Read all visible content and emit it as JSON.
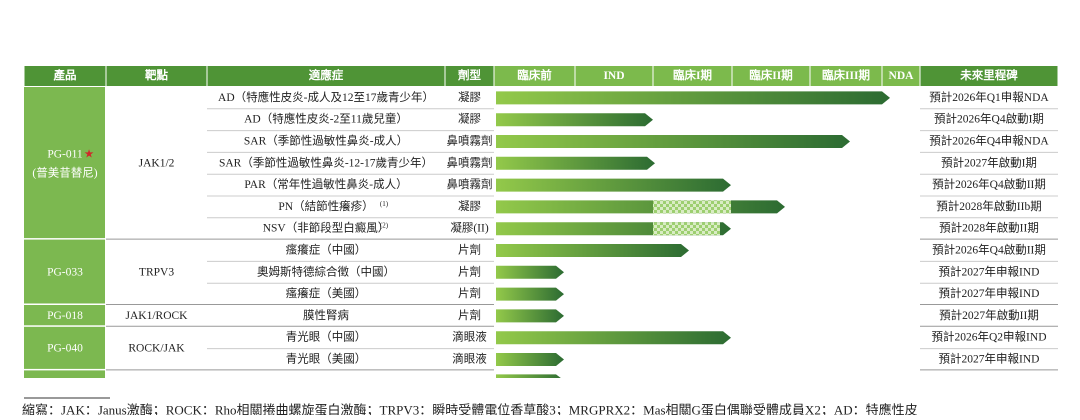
{
  "header": [
    "產品",
    "靶點",
    "適應症",
    "劑型",
    "臨床前",
    "IND",
    "臨床I期",
    "臨床II期",
    "臨床III期",
    "NDA",
    "未來里程碑"
  ],
  "groups": [
    {
      "product": "PG-011",
      "star": "★",
      "product_sub": "(普美昔替尼)",
      "target": "JAK1/2",
      "rows": [
        {
          "indication": "AD（特應性皮炎-成人及12至17歲青少年）",
          "form": "凝膠",
          "milestone": "預計2026年Q1申報NDA"
        },
        {
          "indication": "AD（特應性皮炎-2至11歲兒童）",
          "form": "凝膠",
          "milestone": "預計2026年Q4啟動I期"
        },
        {
          "indication": "SAR（季節性過敏性鼻炎-成人）",
          "form": "鼻噴霧劑",
          "milestone": "預計2026年Q4申報NDA"
        },
        {
          "indication": "SAR（季節性過敏性鼻炎-12-17歲青少年）",
          "form": "鼻噴霧劑",
          "milestone": "預計2027年啟動I期"
        },
        {
          "indication": "PAR（常年性過敏性鼻炎-成人）",
          "form": "鼻噴霧劑",
          "milestone": "預計2026年Q4啟動II期"
        },
        {
          "indication": "PN（結節性癢疹）",
          "note": "(1)",
          "form": "凝膠",
          "milestone": "預計2028年啟動IIb期"
        },
        {
          "indication": "NSV（非節段型白癜風）",
          "note": "(2)",
          "form": "凝膠(II)",
          "milestone": "預計2028年啟動II期"
        }
      ]
    },
    {
      "product": "PG-033",
      "target": "TRPV3",
      "rows": [
        {
          "indication": "瘙癢症（中國）",
          "form": "片劑",
          "milestone": "預計2026年Q4啟動II期"
        },
        {
          "indication": "奧姆斯特德綜合徵（中國）",
          "form": "片劑",
          "milestone": "預計2027年申報IND"
        },
        {
          "indication": "瘙癢症（美國）",
          "form": "片劑",
          "milestone": "預計2027年申報IND"
        }
      ]
    },
    {
      "product": "PG-018",
      "target": "JAK1/ROCK",
      "rows": [
        {
          "indication": "膜性腎病",
          "form": "片劑",
          "milestone": "預計2027年啟動II期"
        }
      ]
    },
    {
      "product": "PG-040",
      "target": "ROCK/JAK",
      "rows": [
        {
          "indication": "青光眼（中國）",
          "form": "滴眼液",
          "milestone": "預計2026年Q2申報IND"
        },
        {
          "indication": "青光眼（美國）",
          "form": "滴眼液",
          "milestone": "預計2027年申報IND"
        }
      ]
    }
  ],
  "footnote": "縮寫：JAK：Janus激酶；ROCK：Rho相關捲曲螺旋蛋白激酶；TRPV3：瞬時受體電位香草酸3；MRGPRX2：Mas相關G蛋白偶聯受體成員X2；AD：特應性皮"
}
